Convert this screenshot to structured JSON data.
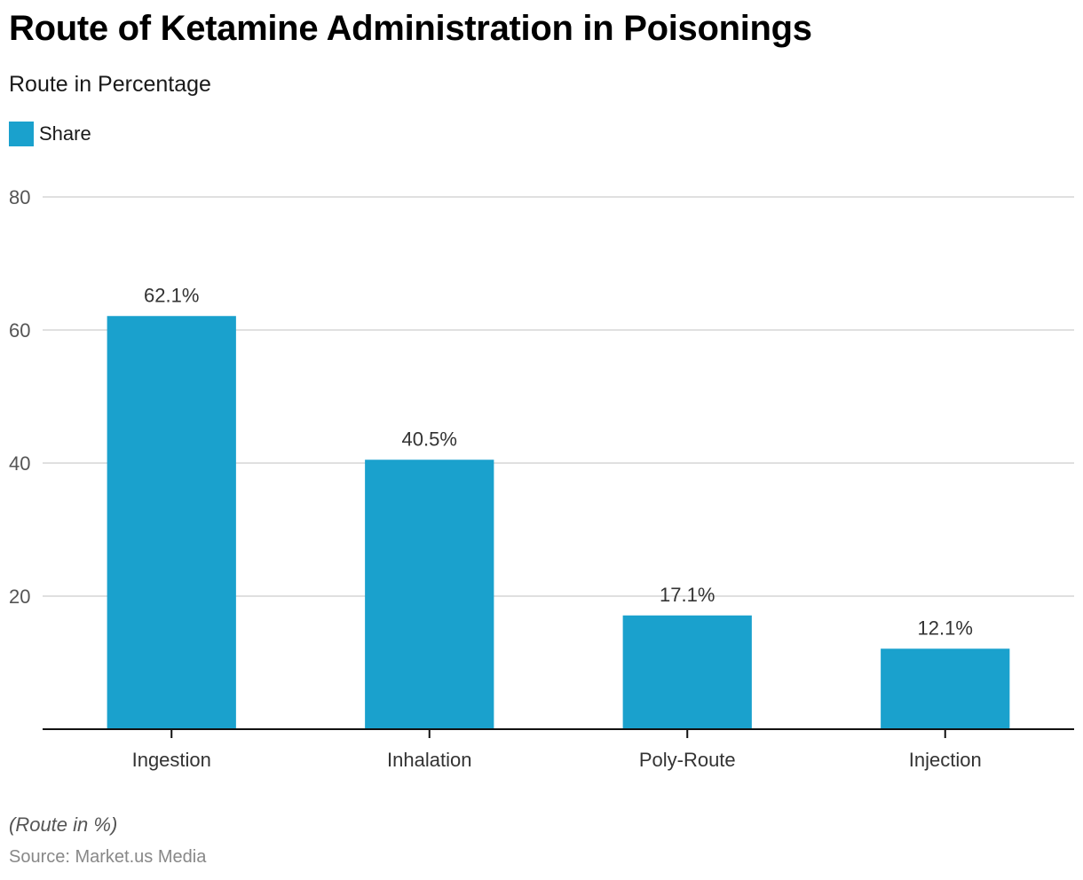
{
  "chart_data": {
    "type": "bar",
    "title": "Route of Ketamine Administration in Poisonings",
    "subtitle": "Route in Percentage",
    "categories": [
      "Ingestion",
      "Inhalation",
      "Poly-Route",
      "Injection"
    ],
    "series": [
      {
        "name": "Share",
        "values": [
          62.1,
          40.5,
          17.1,
          12.1
        ],
        "labels": [
          "62.1%",
          "40.5%",
          "17.1%",
          "12.1%"
        ],
        "color": "#1aa1cd"
      }
    ],
    "xlabel": "",
    "ylabel": "",
    "ylim": [
      0,
      80
    ],
    "yticks": [
      20,
      40,
      60,
      80
    ],
    "ytick_labels": [
      "20",
      "40",
      "60",
      "80"
    ],
    "grid": true,
    "legend": "top-left"
  },
  "footer": {
    "note": "(Route in %)",
    "source": "Source: Market.us Media"
  }
}
